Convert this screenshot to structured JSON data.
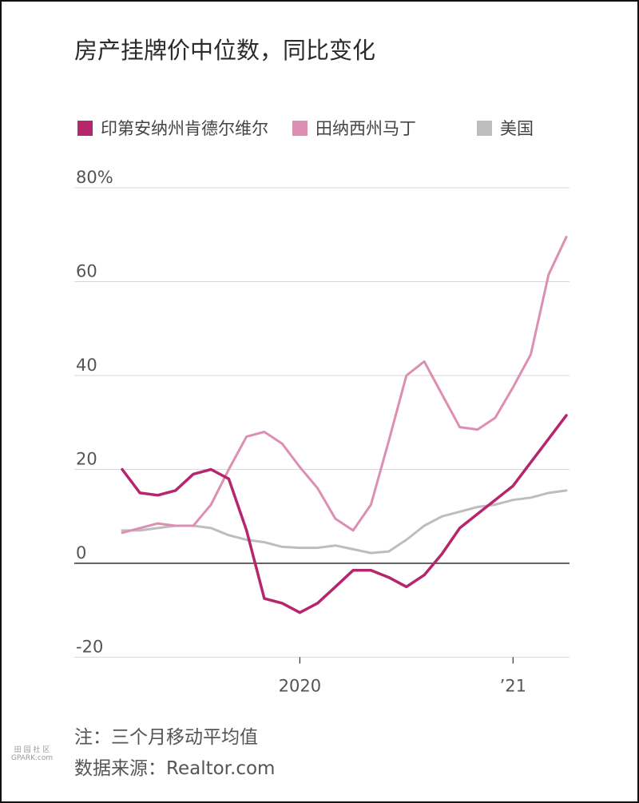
{
  "title": "房产挂牌价中位数，同比变化",
  "legend": [
    {
      "label": "印第安纳州肯德尔维尔",
      "color": "#b5266c"
    },
    {
      "label": "田纳西州马丁",
      "color": "#dc8fb3"
    },
    {
      "label": "美国",
      "color": "#bdbdbd"
    }
  ],
  "note": "注：三个月移动平均值",
  "source": "数据来源：Realtor.com",
  "watermark": {
    "top": "田 园 社 区",
    "bottom": "GPARK.com"
  },
  "chart_data": {
    "type": "line",
    "title": "房产挂牌价中位数，同比变化",
    "ylim": [
      -20,
      80
    ],
    "yticks": [
      -20,
      0,
      20,
      40,
      60,
      80
    ],
    "ytick_labels": [
      "-20",
      "0",
      "20",
      "40",
      "60",
      "80%"
    ],
    "xticks": [
      {
        "x": "2020-01",
        "label": "2020"
      },
      {
        "x": "2021-01",
        "label": "’21"
      }
    ],
    "x": [
      "2019-03",
      "2019-04",
      "2019-05",
      "2019-06",
      "2019-07",
      "2019-08",
      "2019-09",
      "2019-10",
      "2019-11",
      "2019-12",
      "2020-01",
      "2020-02",
      "2020-03",
      "2020-04",
      "2020-05",
      "2020-06",
      "2020-07",
      "2020-08",
      "2020-09",
      "2020-10",
      "2020-11",
      "2020-12",
      "2021-01",
      "2021-02",
      "2021-03",
      "2021-04"
    ],
    "series": [
      {
        "name": "印第安纳州肯德尔维尔",
        "color": "#b5266c",
        "values": [
          20,
          15,
          14.5,
          15.5,
          19,
          20,
          18,
          7,
          -7.5,
          -8.5,
          -10.5,
          -8.5,
          -5,
          -1.5,
          -1.5,
          -3,
          -5,
          -2.5,
          2,
          7.5,
          10.5,
          13.5,
          16.5,
          21.5,
          26.5,
          31.5
        ]
      },
      {
        "name": "田纳西州马丁",
        "color": "#dc8fb3",
        "values": [
          6.5,
          7.5,
          8.5,
          8,
          8,
          12.5,
          20,
          27,
          28,
          25.5,
          20.5,
          16,
          9.5,
          7,
          12.5,
          26,
          40,
          43,
          36,
          29,
          28.5,
          31,
          37.5,
          44.5,
          61.5,
          69.5
        ]
      },
      {
        "name": "美国",
        "color": "#bdbdbd",
        "values": [
          7,
          7,
          7.5,
          8,
          8,
          7.5,
          6,
          5,
          4.5,
          3.5,
          3.3,
          3.3,
          3.8,
          3,
          2.2,
          2.5,
          5,
          8,
          10,
          11,
          12,
          12.5,
          13.5,
          14,
          15,
          15.5
        ]
      }
    ]
  }
}
